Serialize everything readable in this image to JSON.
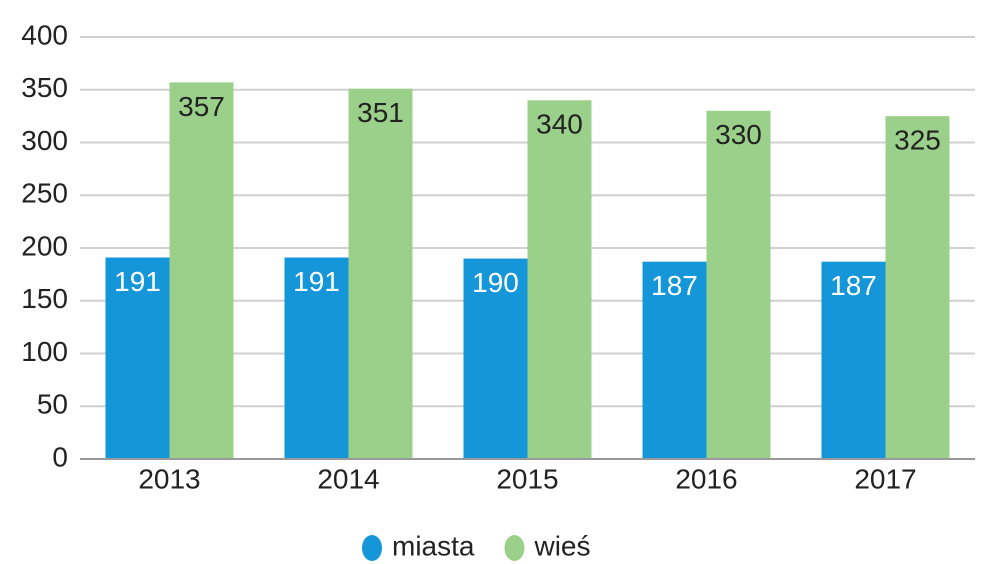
{
  "chart_data": {
    "type": "bar",
    "categories": [
      "2013",
      "2014",
      "2015",
      "2016",
      "2017"
    ],
    "series": [
      {
        "name": "miasta",
        "color": "#1596d8",
        "values": [
          191,
          191,
          190,
          187,
          187
        ]
      },
      {
        "name": "wieś",
        "color": "#9bd08a",
        "values": [
          357,
          351,
          340,
          330,
          325
        ]
      }
    ],
    "ylim": [
      0,
      400
    ],
    "yticks": [
      0,
      50,
      100,
      150,
      200,
      250,
      300,
      350,
      400
    ],
    "grid": true,
    "legend": "bottom"
  }
}
